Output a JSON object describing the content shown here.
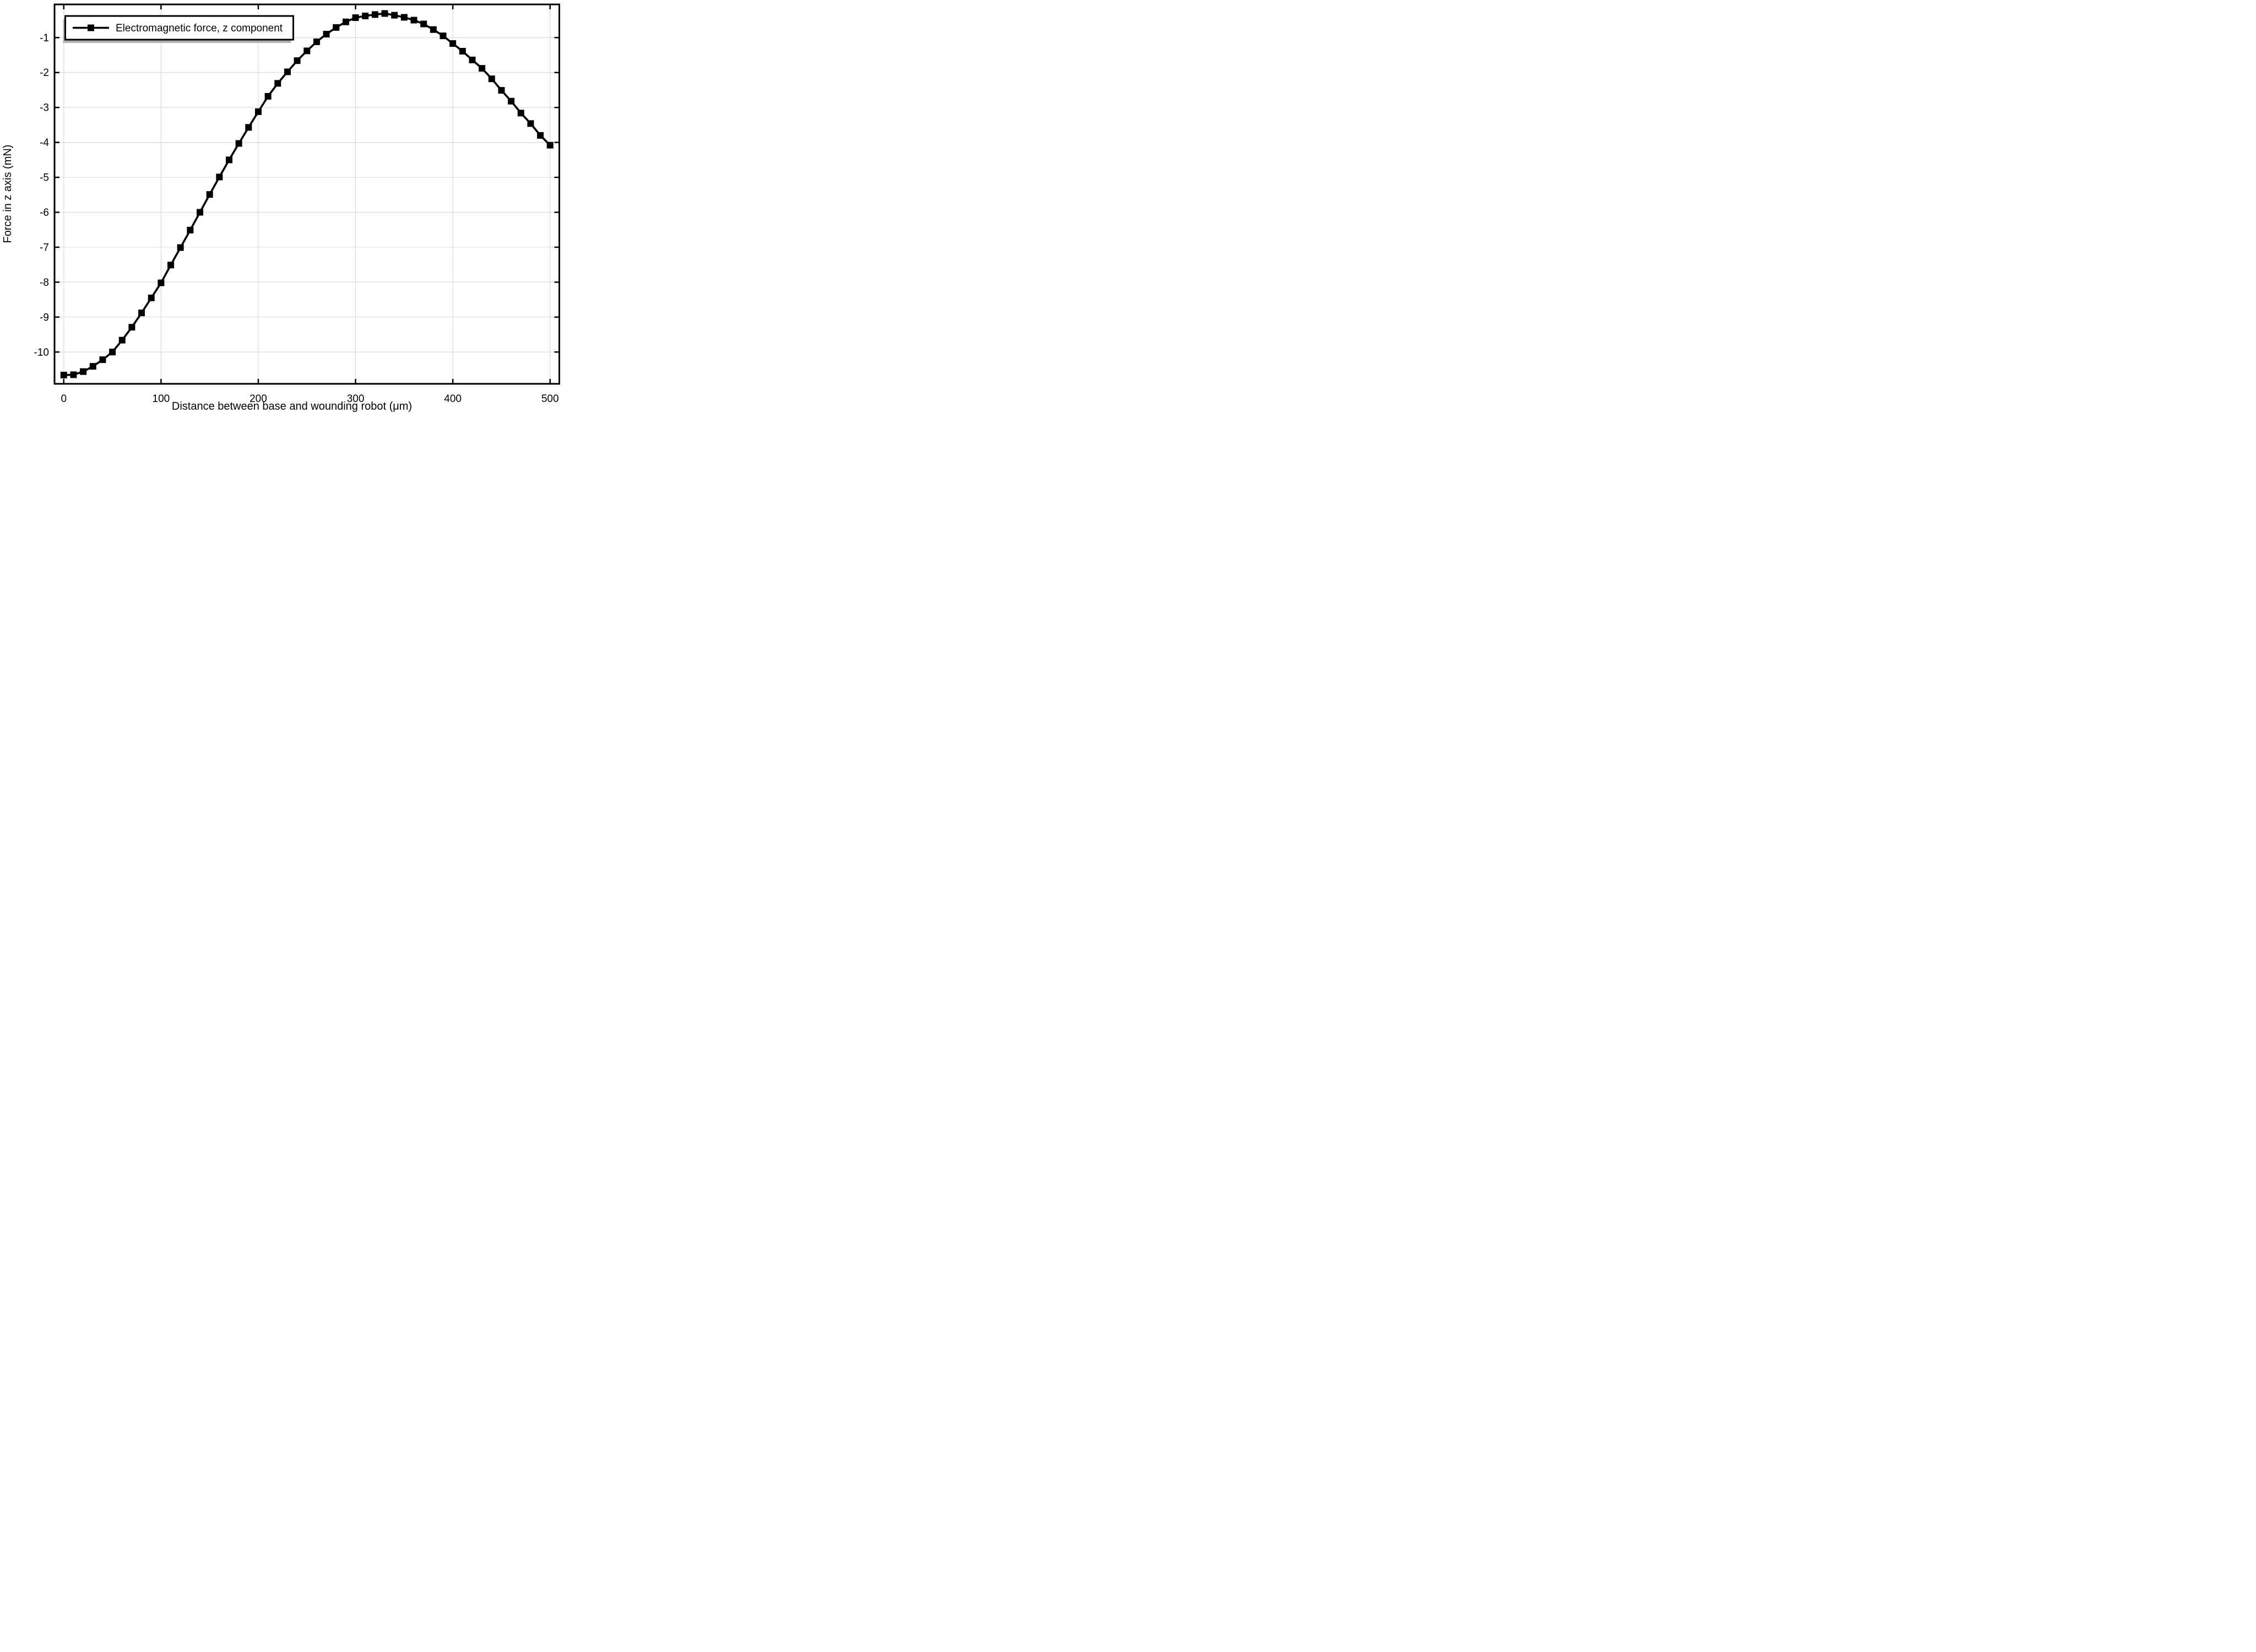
{
  "page": {
    "background": "#ffffff"
  },
  "chart_data": {
    "type": "line",
    "title": "",
    "xlabel": "Distance between base and wounding robot (μm)",
    "ylabel": "Force in z axis (mN)",
    "legend_position": "top-left",
    "grid": true,
    "grid_color": "#dcdcdc",
    "axis_color": "#000000",
    "legend_shadow_color": "#b0b0b0",
    "xlim": [
      -9.5,
      509.5
    ],
    "ylim": [
      -10.91,
      -0.05
    ],
    "x_ticks": [
      0,
      100,
      200,
      300,
      400,
      500
    ],
    "y_ticks": [
      -1,
      -2,
      -3,
      -4,
      -5,
      -6,
      -7,
      -8,
      -9,
      -10
    ],
    "legend": [
      {
        "label": "Electromagnetic force, z component",
        "marker": "filled-square",
        "color": "#000000"
      }
    ],
    "series": [
      {
        "name": "Electromagnetic force, z component",
        "color": "#000000",
        "marker": "square",
        "x": [
          0,
          10,
          20,
          30,
          40,
          50,
          60,
          70,
          80,
          90,
          100,
          110,
          120,
          130,
          140,
          150,
          160,
          170,
          180,
          190,
          200,
          210,
          220,
          230,
          240,
          250,
          260,
          270,
          280,
          290,
          300,
          310,
          320,
          330,
          340,
          350,
          360,
          370,
          380,
          390,
          400,
          410,
          420,
          430,
          440,
          450,
          460,
          470,
          480,
          490,
          500
        ],
        "y": [
          -10.66,
          -10.65,
          -10.56,
          -10.41,
          -10.22,
          -10.0,
          -9.66,
          -9.29,
          -8.88,
          -8.45,
          -8.02,
          -7.51,
          -7.01,
          -6.51,
          -6.0,
          -5.49,
          -4.99,
          -4.5,
          -4.03,
          -3.57,
          -3.12,
          -2.68,
          -2.31,
          -1.98,
          -1.66,
          -1.38,
          -1.12,
          -0.9,
          -0.71,
          -0.55,
          -0.43,
          -0.38,
          -0.34,
          -0.31,
          -0.36,
          -0.42,
          -0.5,
          -0.61,
          -0.77,
          -0.95,
          -1.17,
          -1.39,
          -1.64,
          -1.88,
          -2.18,
          -2.51,
          -2.82,
          -3.16,
          -3.46,
          -3.8,
          -4.08
        ]
      }
    ]
  }
}
